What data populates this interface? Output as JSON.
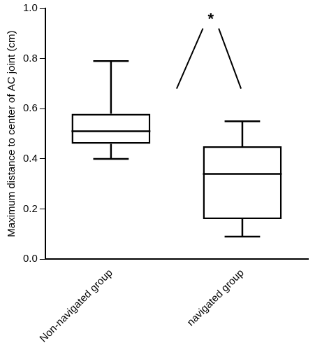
{
  "chart_data": {
    "type": "box",
    "y_label": "Maximum distance to center of AC joint (cm)",
    "categories": [
      "Non-navigated group",
      "navigated group"
    ],
    "min": [
      0.4,
      0.09
    ],
    "q1": [
      0.46,
      0.16
    ],
    "median": [
      0.51,
      0.34
    ],
    "q3": [
      0.58,
      0.45
    ],
    "max": [
      0.79,
      0.55
    ],
    "color": "#000000",
    "ylim": [
      0,
      1
    ],
    "yticks": [
      {
        "value": 0,
        "label": "0.0"
      },
      {
        "value": 0.2,
        "label": "0.2"
      },
      {
        "value": 0.4,
        "label": "0.4"
      },
      {
        "value": 0.6,
        "label": "0.6"
      },
      {
        "value": 0.8,
        "label": "0.8"
      },
      {
        "value": 1,
        "label": "1.0"
      }
    ],
    "grid": false,
    "annotations": [
      {
        "text": "*",
        "categories": [
          "Non-navigated group",
          "navigated group"
        ]
      }
    ]
  }
}
